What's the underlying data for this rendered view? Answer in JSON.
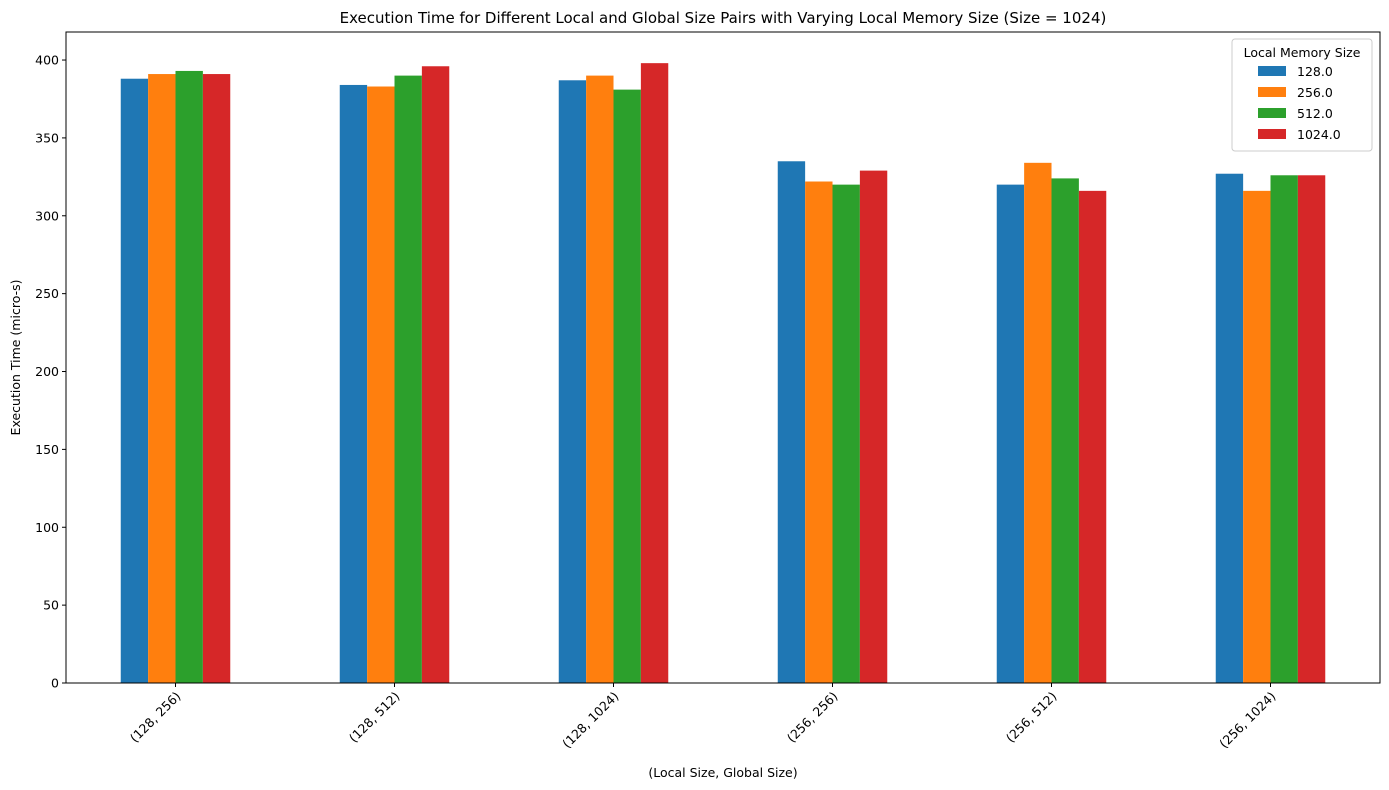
{
  "chart_data": {
    "type": "bar",
    "title": "Execution Time for Different Local and Global Size Pairs with Varying Local Memory Size (Size = 1024)",
    "xlabel": "(Local Size, Global Size)",
    "ylabel": "Execution Time (micro-s)",
    "ylim": [
      0,
      418
    ],
    "yticks": [
      0,
      50,
      100,
      150,
      200,
      250,
      300,
      350,
      400
    ],
    "categories": [
      "(128, 256)",
      "(128, 512)",
      "(128, 1024)",
      "(256, 256)",
      "(256, 512)",
      "(256, 1024)"
    ],
    "legend_title": "Local Memory Size",
    "legend_position": "top-right",
    "grid": false,
    "series": [
      {
        "name": "128.0",
        "color": "#1f77b4",
        "values": [
          388,
          384,
          387,
          335,
          320,
          327
        ]
      },
      {
        "name": "256.0",
        "color": "#ff7f0e",
        "values": [
          391,
          383,
          390,
          322,
          334,
          316
        ]
      },
      {
        "name": "512.0",
        "color": "#2ca02c",
        "values": [
          393,
          390,
          381,
          320,
          324,
          326
        ]
      },
      {
        "name": "1024.0",
        "color": "#d62728",
        "values": [
          391,
          396,
          398,
          329,
          316,
          326
        ]
      }
    ]
  }
}
